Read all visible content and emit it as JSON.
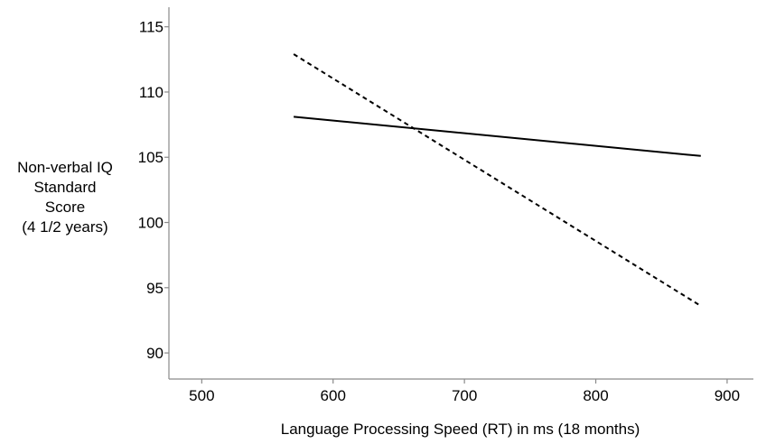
{
  "chart_data": {
    "type": "line",
    "title": "",
    "xlabel": "Language Processing Speed (RT) in ms (18 months)",
    "ylabel_lines": [
      "Non-verbal IQ",
      "Standard",
      "Score",
      "(4 1/2 years)"
    ],
    "xlim": [
      475,
      920
    ],
    "ylim": [
      88,
      116.5
    ],
    "x_ticks": [
      500,
      600,
      700,
      800,
      900
    ],
    "y_ticks": [
      90,
      95,
      100,
      105,
      110,
      115
    ],
    "grid": false,
    "legend": "none",
    "series": [
      {
        "style": "solid",
        "color": "#000000",
        "x": [
          570,
          880
        ],
        "y": [
          108.1,
          105.1
        ]
      },
      {
        "style": "dashed",
        "color": "#000000",
        "x": [
          570,
          880
        ],
        "y": [
          112.9,
          93.6
        ]
      }
    ]
  }
}
